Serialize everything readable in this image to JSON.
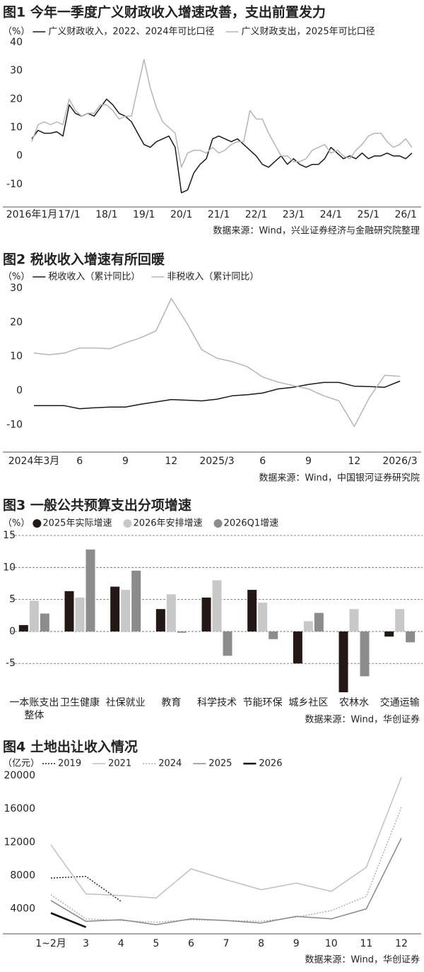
{
  "chart_data": [
    {
      "type": "line",
      "title": "图1 今年一季度广义财政收入增速改善，支出前置发力",
      "unit": "（%）",
      "source": "数据来源：Wind，兴业证券经济与金融研究院整理",
      "categories": [
        "2016年1月",
        null,
        null,
        null,
        null,
        null,
        "17/1",
        null,
        null,
        null,
        null,
        null,
        "18/1",
        null,
        null,
        null,
        null,
        null,
        "19/1",
        null,
        null,
        null,
        null,
        null,
        "20/1",
        null,
        null,
        null,
        null,
        null,
        "21/1",
        null,
        null,
        null,
        null,
        null,
        "22/1",
        null,
        null,
        null,
        null,
        null,
        "23/1",
        null,
        null,
        null,
        null,
        null,
        "24/1",
        null,
        null,
        null,
        null,
        null,
        "25/1",
        null,
        null,
        null,
        null,
        null,
        "26/1",
        null
      ],
      "series": [
        {
          "name": "广义财政收入，2022、2024年可比口径",
          "color": "#1a1a1a",
          "line_style": "solid",
          "values": [
            6,
            9,
            8,
            8,
            8.5,
            7,
            18,
            15,
            14,
            15,
            14,
            17,
            20,
            18,
            15,
            14,
            12,
            8,
            4,
            3,
            5,
            6,
            7,
            3,
            -13,
            -12,
            -6,
            -3,
            -1,
            6,
            7,
            6,
            5,
            6,
            4,
            2,
            0,
            -3,
            -4,
            -2,
            0,
            -3,
            -1,
            -3,
            -4,
            -3,
            -3,
            -1,
            3,
            1,
            -1,
            0,
            -1,
            1,
            -1,
            0,
            0,
            1,
            0,
            0,
            -1,
            1
          ]
        },
        {
          "name": "广义财政支出，2025年可比口径",
          "color": "#b5b5b5",
          "line_style": "solid",
          "values": [
            5,
            11,
            12,
            11,
            12,
            11,
            20,
            16,
            14,
            15,
            15,
            18,
            18,
            16,
            13,
            14,
            14,
            24,
            34,
            24,
            17,
            12,
            10,
            8,
            -4,
            1,
            2,
            2,
            1,
            3,
            1,
            2,
            4,
            5,
            5,
            16,
            13,
            13,
            8,
            4,
            0,
            0,
            -2,
            -2,
            -1,
            2,
            3,
            4,
            1,
            2,
            0,
            -1,
            2,
            4,
            7,
            8,
            8,
            5,
            3,
            4,
            6,
            3
          ]
        }
      ],
      "ylim": [
        -18,
        40
      ],
      "yticks": [
        40,
        30,
        20,
        10,
        0,
        -10
      ],
      "grid": false
    },
    {
      "type": "line",
      "title": "图2 税收收入增速有所回暖",
      "unit": "（%）",
      "source": "数据来源：Wind，中国银河证券研究院",
      "categories": [
        "2024年3月",
        null,
        null,
        "6",
        null,
        null,
        "9",
        null,
        null,
        "12",
        null,
        null,
        "2025/3",
        null,
        null,
        "6",
        null,
        null,
        "9",
        null,
        null,
        "12",
        null,
        null,
        "2026/3"
      ],
      "series": [
        {
          "name": "税收收入（累计同比）",
          "color": "#1a1a1a",
          "line_style": "solid",
          "values": [
            -4.4,
            -4.4,
            -4.4,
            -5.3,
            -5,
            -4.8,
            -4.8,
            -4,
            -3.3,
            -2.6,
            -2.8,
            -3,
            -2.5,
            -1.5,
            -1.2,
            -0.7,
            0.5,
            1,
            1.8,
            2.4,
            2.4,
            1.3,
            1.2,
            1,
            2.8
          ]
        },
        {
          "name": "非税收入（累计同比）",
          "color": "#b5b5b5",
          "line_style": "solid",
          "values": [
            11,
            10.5,
            11,
            12.5,
            12.5,
            12.3,
            14,
            15.5,
            17.5,
            27,
            20,
            12,
            9.5,
            8.5,
            7,
            4,
            2.5,
            1.5,
            0.5,
            -1.5,
            -3,
            -10.5,
            -2,
            4.5,
            4.2
          ]
        }
      ],
      "ylim": [
        -18,
        30
      ],
      "yticks": [
        30,
        20,
        10,
        0,
        -10
      ],
      "grid": false
    },
    {
      "type": "bar",
      "title": "图3 一般公共预算支出分项增速",
      "unit": "（%）",
      "source": "数据来源：Wind，华创证券",
      "categories": [
        "一本账支出整体",
        "卫生健康",
        "社保就业",
        "教育",
        "科学技术",
        "节能环保",
        "城乡社区",
        "农林水",
        "交通运输"
      ],
      "series": [
        {
          "name": "2025年实际增速",
          "color": "#231815",
          "values": [
            1.0,
            6.3,
            7.0,
            3.5,
            5.3,
            6.5,
            -5.0,
            -9.5,
            -0.8
          ]
        },
        {
          "name": "2026年安排增速",
          "color": "#c8c8c8",
          "values": [
            4.8,
            5.3,
            6.5,
            5.8,
            8.0,
            4.5,
            1.6,
            3.5,
            3.5
          ]
        },
        {
          "name": "2026Q1增速",
          "color": "#8c8c8c",
          "values": [
            2.8,
            12.8,
            9.5,
            -0.2,
            -3.8,
            -1.2,
            2.9,
            -7.0,
            -1.7
          ]
        }
      ],
      "ylim": [
        -9.5,
        15
      ],
      "yticks": [
        15,
        10,
        5,
        0,
        -5
      ],
      "grid": true
    },
    {
      "type": "line",
      "title": "图4 土地出让收入情况",
      "unit": "（亿元）",
      "source": "数据来源：Wind，华创证券",
      "categories": [
        "1~2月",
        "3",
        "4",
        "5",
        "6",
        "7",
        "8",
        "9",
        "10",
        "11",
        "12"
      ],
      "series": [
        {
          "name": "2019",
          "color": "#1a1a1a",
          "line_style": "dotted",
          "values": [
            7700,
            7900,
            4900,
            null,
            null,
            null,
            null,
            null,
            null,
            null,
            null
          ]
        },
        {
          "name": "2021",
          "color": "#c0c0c0",
          "line_style": "solid",
          "values": [
            11700,
            5800,
            5600,
            5300,
            8800,
            7500,
            6300,
            7100,
            6100,
            9000,
            19800
          ]
        },
        {
          "name": "2024",
          "color": "#aaaaaa",
          "line_style": "dotted",
          "values": [
            5700,
            2800,
            2600,
            2400,
            2700,
            2600,
            2500,
            3000,
            3800,
            5500,
            16200
          ]
        },
        {
          "name": "2025",
          "color": "#888888",
          "line_style": "solid",
          "values": [
            5000,
            2500,
            2700,
            2100,
            2800,
            2600,
            2300,
            3100,
            2800,
            4000,
            12500
          ]
        },
        {
          "name": "2026",
          "color": "#111111",
          "line_style": "bold",
          "values": [
            3500,
            1800,
            null,
            null,
            null,
            null,
            null,
            null,
            null,
            null,
            null
          ]
        }
      ],
      "ylim": [
        1000,
        20000
      ],
      "yticks": [
        20000,
        16000,
        12000,
        8000,
        4000
      ],
      "grid": false
    }
  ]
}
